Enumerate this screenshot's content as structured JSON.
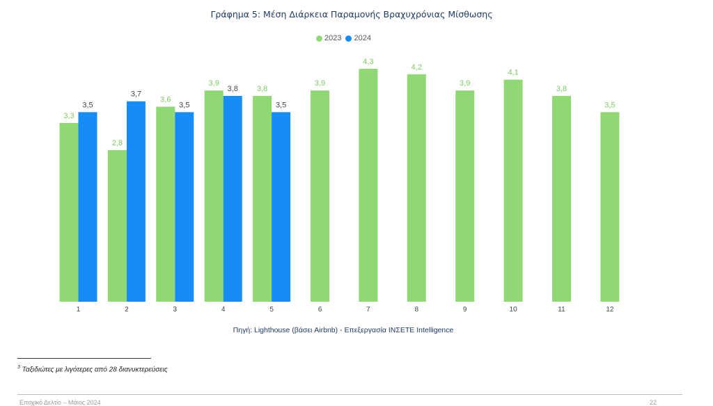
{
  "chart_data": {
    "type": "bar",
    "title": "Γράφημα 5: Μέση Διάρκεια Παραμονής Βραχυχρόνιας Μίσθωσης",
    "categories": [
      "1",
      "2",
      "3",
      "4",
      "5",
      "6",
      "7",
      "8",
      "9",
      "10",
      "11",
      "12"
    ],
    "series": [
      {
        "name": "2023",
        "color": "#8fd874",
        "values": [
          3.3,
          2.8,
          3.6,
          3.9,
          3.8,
          3.9,
          4.3,
          4.2,
          3.9,
          4.1,
          3.8,
          3.5
        ],
        "labels": [
          "3,3",
          "2,8",
          "3,6",
          "3,9",
          "3,8",
          "3,9",
          "4,3",
          "4,2",
          "3,9",
          "4,1",
          "3,8",
          "3,5"
        ],
        "label_color": "#7cc95e"
      },
      {
        "name": "2024",
        "color": "#168cf5",
        "values": [
          3.5,
          3.7,
          3.5,
          3.8,
          3.5,
          null,
          null,
          null,
          null,
          null,
          null,
          null
        ],
        "labels": [
          "3,5",
          "3,7",
          "3,5",
          "3,8",
          "3,5",
          null,
          null,
          null,
          null,
          null,
          null,
          null
        ],
        "label_color": "#444444"
      }
    ],
    "ylim": [
      0,
      4.3
    ],
    "xlabel": "",
    "ylabel": "",
    "grid": false,
    "legend_position": "top-center"
  },
  "source": "Πηγή: Lighthouse (βάσει Airbnb) - Επεξεργασία ΙΝΣΕΤΕ Intelligence",
  "footnote": {
    "marker": "3",
    "text": " Ταξιδιώτες με λιγότερες από 28 διανυκτερεύσεις"
  },
  "footer": {
    "left": "Εποχικό Δελτίο – Μάιος 2024",
    "right": "22"
  }
}
